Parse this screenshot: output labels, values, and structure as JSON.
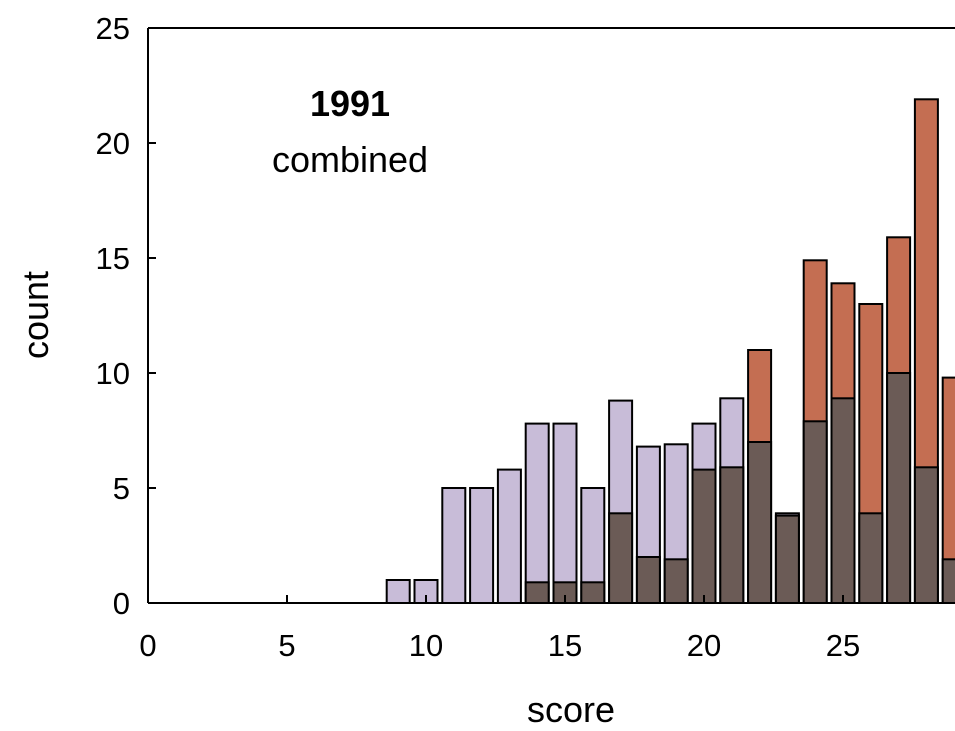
{
  "chart_data": {
    "type": "bar",
    "annotation": {
      "year": "1991",
      "subtitle": "combined"
    },
    "xlabel": "score",
    "ylabel": "count",
    "xlim": [
      0,
      29
    ],
    "ylim": [
      0,
      25
    ],
    "xticks": [
      0,
      5,
      10,
      15,
      20,
      25
    ],
    "yticks": [
      0,
      5,
      10,
      15,
      20,
      25
    ],
    "colors": {
      "series_a": "#c8bcd8",
      "series_b": "#c46e52",
      "overlap": "#6b5b56",
      "edge": "#000000"
    },
    "x": [
      9,
      10,
      11,
      12,
      13,
      14,
      15,
      16,
      17,
      18,
      19,
      20,
      21,
      22,
      23,
      24,
      25,
      26,
      27,
      28,
      29
    ],
    "series": [
      {
        "values": [
          1,
          1,
          5,
          5,
          5.8,
          7.8,
          7.8,
          5,
          8.8,
          6.8,
          6.9,
          7.8,
          8.9,
          7,
          3.9,
          7.9,
          8.9,
          3.9,
          10,
          5.9,
          1.9
        ]
      },
      {
        "values": [
          0,
          0,
          0,
          0,
          0,
          0.9,
          0.9,
          0.9,
          3.9,
          2,
          1.9,
          5.8,
          5.9,
          11,
          3.8,
          14.9,
          13.9,
          13,
          15.9,
          21.9,
          9.8
        ]
      }
    ]
  }
}
